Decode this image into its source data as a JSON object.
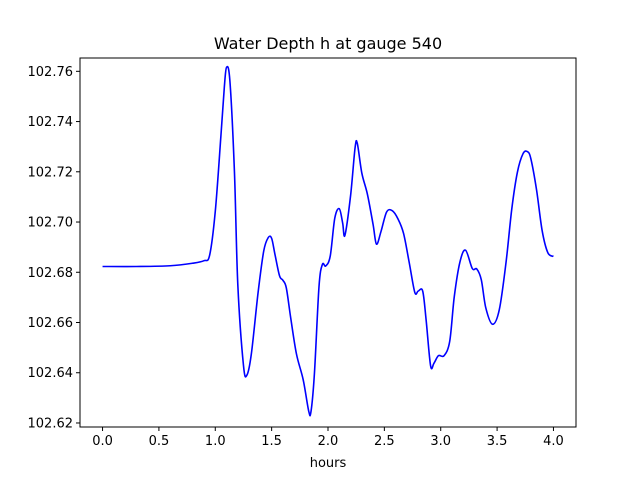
{
  "chart_data": {
    "type": "line",
    "title": "Water Depth h at gauge 540",
    "xlabel": "hours",
    "ylabel": "",
    "xlim": [
      -0.2,
      4.2
    ],
    "ylim": [
      102.6184,
      102.7653
    ],
    "xticks": [
      0.0,
      0.5,
      1.0,
      1.5,
      2.0,
      2.5,
      3.0,
      3.5,
      4.0
    ],
    "xtick_labels": [
      "0.0",
      "0.5",
      "1.0",
      "1.5",
      "2.0",
      "2.5",
      "3.0",
      "3.5",
      "4.0"
    ],
    "yticks": [
      102.62,
      102.64,
      102.66,
      102.68,
      102.7,
      102.72,
      102.74,
      102.76
    ],
    "ytick_labels": [
      "102.62",
      "102.64",
      "102.66",
      "102.68",
      "102.70",
      "102.72",
      "102.74",
      "102.76"
    ],
    "grid": false,
    "legend": "none",
    "series": [
      {
        "color": "#0000ff",
        "x": [
          0.0,
          0.3,
          0.6,
          0.8,
          0.9,
          0.95,
          1.0,
          1.05,
          1.08,
          1.1,
          1.13,
          1.17,
          1.2,
          1.25,
          1.28,
          1.32,
          1.38,
          1.43,
          1.47,
          1.5,
          1.53,
          1.57,
          1.6,
          1.63,
          1.67,
          1.72,
          1.78,
          1.83,
          1.85,
          1.88,
          1.92,
          1.95,
          1.98,
          2.02,
          2.06,
          2.1,
          2.13,
          2.15,
          2.2,
          2.24,
          2.26,
          2.3,
          2.35,
          2.4,
          2.43,
          2.47,
          2.52,
          2.57,
          2.62,
          2.67,
          2.72,
          2.77,
          2.8,
          2.84,
          2.87,
          2.91,
          2.94,
          2.98,
          3.03,
          3.08,
          3.12,
          3.17,
          3.22,
          3.28,
          3.32,
          3.36,
          3.4,
          3.46,
          3.52,
          3.58,
          3.63,
          3.68,
          3.73,
          3.77,
          3.8,
          3.85,
          3.9,
          3.95,
          4.0
        ],
        "y": [
          102.6823,
          102.6823,
          102.6826,
          102.6836,
          102.6846,
          102.6868,
          102.7042,
          102.7343,
          102.7535,
          102.7616,
          102.756,
          102.72,
          102.675,
          102.643,
          102.639,
          102.6475,
          102.672,
          102.6885,
          102.6938,
          102.6935,
          102.687,
          102.6786,
          102.6768,
          102.6738,
          102.6616,
          102.6475,
          102.6372,
          102.6245,
          102.6248,
          102.64,
          102.6742,
          102.6831,
          102.6825,
          102.6865,
          102.7015,
          102.7053,
          102.6996,
          102.6947,
          102.7104,
          102.7295,
          102.7313,
          102.7195,
          102.711,
          102.699,
          102.6912,
          102.6962,
          102.704,
          102.7045,
          102.7013,
          102.6955,
          102.684,
          102.672,
          102.6725,
          102.6725,
          102.6612,
          102.6428,
          102.6438,
          102.6468,
          102.6468,
          102.6526,
          102.6702,
          102.684,
          102.6888,
          102.6815,
          102.6813,
          102.677,
          102.6658,
          102.6593,
          102.6652,
          102.6842,
          102.7051,
          102.7198,
          102.7272,
          102.728,
          102.7251,
          102.7128,
          102.6965,
          102.6878,
          102.6863
        ]
      }
    ]
  }
}
